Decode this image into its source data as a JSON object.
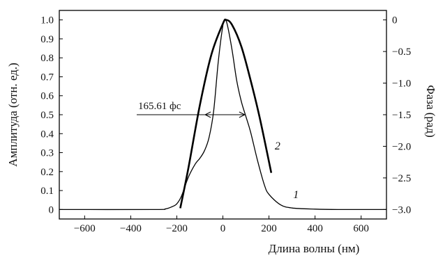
{
  "chart_data": {
    "type": "line",
    "x_axis": {
      "label": "Длина волны (нм)",
      "range": [
        -710,
        710
      ],
      "ticks": [
        -600,
        -400,
        -200,
        0,
        200,
        400,
        600
      ],
      "tick_labels": [
        "−600",
        "−400",
        "−200",
        "0",
        "200",
        "400",
        "600"
      ]
    },
    "y_axis_left": {
      "label": "Амплитуда (отн. ед.)",
      "range": [
        -0.05,
        1.05
      ],
      "ticks": [
        0,
        0.1,
        0.2,
        0.3,
        0.4,
        0.5,
        0.6,
        0.7,
        0.8,
        0.9,
        1.0
      ],
      "tick_labels": [
        "0",
        "0.1",
        "0.2",
        "0.3",
        "0.4",
        "0.5",
        "0.6",
        "0.7",
        "0.8",
        "0.9",
        "1.0"
      ]
    },
    "y_axis_right": {
      "label": "Фаза (рад)",
      "range": [
        -3.15,
        0.15
      ],
      "ticks": [
        0,
        -0.5,
        -1.0,
        -1.5,
        -2.0,
        -2.5,
        -3.0
      ],
      "tick_labels": [
        "0",
        "−0.5",
        "−1.0",
        "−1.5",
        "−2.0",
        "−2.5",
        "−3.0"
      ]
    },
    "series": [
      {
        "id": "1",
        "axis": "left",
        "x": [
          -710,
          -300,
          -250,
          -220,
          -200,
          -180,
          -150,
          -120,
          -100,
          -80,
          -60,
          -40,
          -20,
          0,
          10,
          20,
          40,
          60,
          80,
          100,
          120,
          150,
          180,
          200,
          250,
          300,
          400,
          500,
          710
        ],
        "y": [
          0.0,
          0.0,
          0.003,
          0.015,
          0.03,
          0.07,
          0.17,
          0.24,
          0.27,
          0.31,
          0.38,
          0.52,
          0.78,
          0.97,
          1.0,
          0.97,
          0.84,
          0.68,
          0.57,
          0.49,
          0.41,
          0.26,
          0.13,
          0.08,
          0.025,
          0.008,
          0.002,
          0.0,
          0.0
        ]
      },
      {
        "id": "2",
        "axis": "right",
        "x": [
          -185,
          -150,
          -100,
          -50,
          0,
          15,
          40,
          80,
          120,
          160,
          210
        ],
        "y": [
          -2.98,
          -2.35,
          -1.35,
          -0.55,
          -0.06,
          0.0,
          -0.08,
          -0.42,
          -0.95,
          -1.55,
          -2.42
        ]
      }
    ],
    "annotations": [
      {
        "text": "165.61 фс",
        "type": "fwhm-arrow",
        "x_start": -77,
        "x_end": 95,
        "y": 0.5
      },
      {
        "text": "2",
        "target_series": "2",
        "x": 225,
        "y_right": -2.05
      },
      {
        "text": "1",
        "target_series": "1",
        "x": 305,
        "y": 0.06
      }
    ],
    "grid": false,
    "legend": "none"
  }
}
